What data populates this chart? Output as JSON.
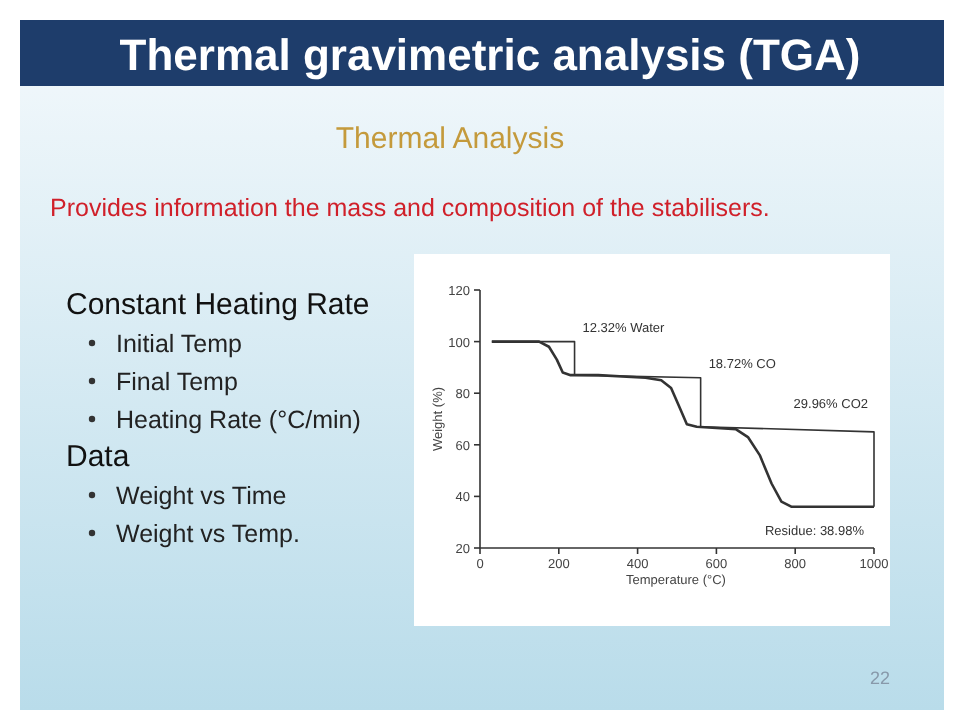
{
  "chart_data": {
    "type": "line",
    "title": "Thermal gravimetric analysis (TGA)",
    "subtitle": "Thermal Analysis",
    "xlabel": "Temperature (°C)",
    "ylabel": "Weight (%)",
    "xlim": [
      0,
      1000
    ],
    "xticks": [
      0,
      200,
      400,
      600,
      800,
      1000
    ],
    "ylim": [
      20,
      120
    ],
    "yticks": [
      20,
      40,
      60,
      80,
      100,
      120
    ],
    "series": [
      {
        "color": "#333333",
        "x": [
          30,
          150,
          175,
          195,
          210,
          230,
          300,
          420,
          460,
          485,
          505,
          525,
          550,
          650,
          680,
          710,
          740,
          765,
          790,
          850,
          1000
        ],
        "values": [
          100,
          100,
          98,
          93,
          88,
          87,
          87,
          86,
          85,
          82,
          75,
          68,
          67,
          66,
          63,
          56,
          45,
          38,
          36,
          36,
          36
        ]
      },
      {
        "color": "#333333",
        "x": [
          30,
          240,
          240
        ],
        "values": [
          100,
          100,
          87
        ]
      },
      {
        "color": "#333333",
        "x": [
          240,
          560,
          560
        ],
        "values": [
          87,
          86,
          67
        ]
      },
      {
        "color": "#333333",
        "x": [
          560,
          1000,
          1000
        ],
        "values": [
          67,
          65,
          36
        ]
      }
    ],
    "annotations": [
      "Provides information the mass and composition of the stabilisers.",
      "Constant Heating Rate",
      "Initial Temp",
      "Final Temp",
      "Heating Rate (°C/min)",
      "Data",
      "Weight vs Time",
      "Weight vs Temp.",
      "22",
      {
        "text": "12.32% Water",
        "x": 240,
        "y": 100
      },
      {
        "text": "18.72% CO",
        "x": 560,
        "y": 86
      },
      {
        "text": "29.96% CO2",
        "x": 1000,
        "y": 65
      },
      {
        "text": "Residue: 38.98%",
        "x": 1000,
        "y": 36
      }
    ],
    "line_style": "solid"
  }
}
